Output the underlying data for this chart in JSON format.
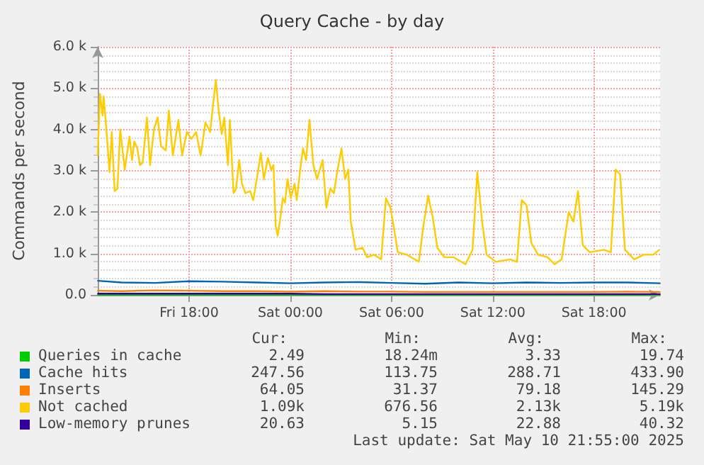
{
  "chart_data": {
    "type": "line",
    "title": "Query Cache - by day",
    "ylabel": "Commands per second",
    "xlim": [
      "2025-05-09T12:35",
      "2025-05-10T21:55"
    ],
    "xticks": [
      {
        "value": "2025-05-09T18:00",
        "label": "Fri 18:00"
      },
      {
        "value": "2025-05-10T00:00",
        "label": "Sat 00:00"
      },
      {
        "value": "2025-05-10T06:00",
        "label": "Sat 06:00"
      },
      {
        "value": "2025-05-10T12:00",
        "label": "Sat 12:00"
      },
      {
        "value": "2025-05-10T18:00",
        "label": "Sat 18:00"
      }
    ],
    "ylim": [
      0,
      6000
    ],
    "yticks": [
      {
        "value": 0,
        "label": "0.0"
      },
      {
        "value": 1000,
        "label": "1.0 k"
      },
      {
        "value": 2000,
        "label": "2.0 k"
      },
      {
        "value": 3000,
        "label": "3.0 k"
      },
      {
        "value": 4000,
        "label": "4.0 k"
      },
      {
        "value": 5000,
        "label": "5.0 k"
      },
      {
        "value": 6000,
        "label": "6.0 k"
      }
    ],
    "grid": true,
    "legend": "bottom",
    "marker": "none",
    "x": [
      "2025-05-09T12:36",
      "2025-05-09T14:00",
      "2025-05-09T16:00",
      "2025-05-09T18:00",
      "2025-05-09T20:00",
      "2025-05-09T22:00",
      "2025-05-10T00:00",
      "2025-05-10T02:00",
      "2025-05-10T04:00",
      "2025-05-10T06:00",
      "2025-05-10T08:00",
      "2025-05-10T10:00",
      "2025-05-10T12:00",
      "2025-05-10T14:00",
      "2025-05-10T16:00",
      "2025-05-10T18:00",
      "2025-05-10T20:00",
      "2025-05-10T21:54"
    ],
    "series": [
      {
        "name": "Queries in cache",
        "color": "#00cc00",
        "values": [
          0,
          0,
          0,
          0,
          0,
          0,
          0,
          0,
          0,
          0,
          0,
          0,
          0,
          0,
          0,
          0,
          0,
          0
        ]
      },
      {
        "name": "Cache hits",
        "color": "#0066b3",
        "values": [
          340,
          300,
          290,
          330,
          320,
          300,
          280,
          300,
          310,
          290,
          270,
          300,
          280,
          300,
          290,
          300,
          300,
          280
        ]
      },
      {
        "name": "Inserts",
        "color": "#ff8000",
        "values": [
          100,
          90,
          110,
          100,
          90,
          90,
          80,
          90,
          80,
          80,
          70,
          70,
          70,
          70,
          70,
          70,
          80,
          70
        ]
      },
      {
        "name": "Not cached",
        "color": "#ffcc00",
        "x": [
          "2025-05-09T12:35",
          "2025-05-09T12:43",
          "2025-05-09T12:52",
          "2025-05-09T12:56",
          "2025-05-09T13:05",
          "2025-05-09T13:17",
          "2025-05-09T13:25",
          "2025-05-09T13:35",
          "2025-05-09T13:45",
          "2025-05-09T13:55",
          "2025-05-09T14:11",
          "2025-05-09T14:28",
          "2025-05-09T14:37",
          "2025-05-09T14:45",
          "2025-05-09T14:56",
          "2025-05-09T15:05",
          "2025-05-09T15:15",
          "2025-05-09T15:30",
          "2025-05-09T15:41",
          "2025-05-09T15:55",
          "2025-05-09T16:08",
          "2025-05-09T16:20",
          "2025-05-09T16:37",
          "2025-05-09T16:48",
          "2025-05-09T17:02",
          "2025-05-09T17:22",
          "2025-05-09T17:35",
          "2025-05-09T17:52",
          "2025-05-09T18:08",
          "2025-05-09T18:25",
          "2025-05-09T18:41",
          "2025-05-09T18:58",
          "2025-05-09T19:15",
          "2025-05-09T19:23",
          "2025-05-09T19:35",
          "2025-05-09T19:45",
          "2025-05-09T19:56",
          "2025-05-09T20:05",
          "2025-05-09T20:18",
          "2025-05-09T20:25",
          "2025-05-09T20:38",
          "2025-05-09T20:47",
          "2025-05-09T20:58",
          "2025-05-09T21:08",
          "2025-05-09T21:20",
          "2025-05-09T21:37",
          "2025-05-09T21:48",
          "2025-05-09T22:02",
          "2025-05-09T22:15",
          "2025-05-09T22:26",
          "2025-05-09T22:40",
          "2025-05-09T22:52",
          "2025-05-09T23:00",
          "2025-05-09T23:08",
          "2025-05-09T23:15",
          "2025-05-09T23:25",
          "2025-05-09T23:33",
          "2025-05-09T23:41",
          "2025-05-09T23:50",
          "2025-05-10T00:02",
          "2025-05-10T00:15",
          "2025-05-10T00:23",
          "2025-05-10T00:35",
          "2025-05-10T00:45",
          "2025-05-10T00:56",
          "2025-05-10T01:08",
          "2025-05-10T01:22",
          "2025-05-10T01:35",
          "2025-05-10T01:55",
          "2025-05-10T02:08",
          "2025-05-10T02:22",
          "2025-05-10T02:35",
          "2025-05-10T02:45",
          "2025-05-10T03:02",
          "2025-05-10T03:15",
          "2025-05-10T03:26",
          "2025-05-10T03:35",
          "2025-05-10T03:52",
          "2025-05-10T04:17",
          "2025-05-10T04:33",
          "2025-05-10T04:58",
          "2025-05-10T05:23",
          "2025-05-10T05:40",
          "2025-05-10T05:56",
          "2025-05-10T06:13",
          "2025-05-10T06:22",
          "2025-05-10T06:55",
          "2025-05-10T07:37",
          "2025-05-10T07:53",
          "2025-05-10T08:10",
          "2025-05-10T08:26",
          "2025-05-10T08:43",
          "2025-05-10T09:08",
          "2025-05-10T09:41",
          "2025-05-10T10:23",
          "2025-05-10T10:48",
          "2025-05-10T11:05",
          "2025-05-10T11:22",
          "2025-05-10T11:38",
          "2025-05-10T12:11",
          "2025-05-10T13:02",
          "2025-05-10T13:26",
          "2025-05-10T13:43",
          "2025-05-10T14:00",
          "2025-05-10T14:17",
          "2025-05-10T14:41",
          "2025-05-10T15:15",
          "2025-05-10T15:40",
          "2025-05-10T16:05",
          "2025-05-10T16:30",
          "2025-05-10T16:47",
          "2025-05-10T17:03",
          "2025-05-10T17:20",
          "2025-05-10T17:45",
          "2025-05-10T18:35",
          "2025-05-10T19:00",
          "2025-05-10T19:17",
          "2025-05-10T19:33",
          "2025-05-10T19:50",
          "2025-05-10T20:23",
          "2025-05-10T20:56",
          "2025-05-10T21:30",
          "2025-05-10T21:52"
        ],
        "values": [
          3370,
          4860,
          4340,
          4800,
          4060,
          2970,
          3940,
          2510,
          2570,
          4000,
          3030,
          3830,
          3260,
          3710,
          3540,
          3140,
          3200,
          4290,
          3140,
          4000,
          4290,
          3600,
          3490,
          4460,
          3370,
          4230,
          3370,
          3940,
          3770,
          3940,
          3370,
          4170,
          3940,
          4460,
          5200,
          4460,
          3890,
          4290,
          3140,
          4230,
          2460,
          2570,
          3260,
          2690,
          2460,
          2510,
          2290,
          2860,
          3430,
          2800,
          3310,
          3030,
          3140,
          1660,
          1430,
          1890,
          2340,
          2230,
          2800,
          2340,
          2690,
          2290,
          3030,
          3540,
          3260,
          4230,
          3140,
          2800,
          3260,
          2110,
          2570,
          2460,
          2910,
          3540,
          2800,
          3030,
          1770,
          1090,
          1140,
          910,
          970,
          860,
          2340,
          2110,
          1430,
          1030,
          970,
          800,
          1660,
          2400,
          1890,
          1140,
          910,
          910,
          740,
          1090,
          2970,
          1770,
          970,
          800,
          860,
          800,
          2290,
          2170,
          1260,
          970,
          910,
          740,
          860,
          2000,
          1770,
          2510,
          1200,
          1030,
          1090,
          1030,
          3030,
          2910,
          1090,
          860,
          970,
          970,
          1090
        ]
      },
      {
        "name": "Low-memory prunes",
        "color": "#330099",
        "values": [
          30,
          30,
          30,
          30,
          30,
          30,
          30,
          20,
          20,
          20,
          20,
          20,
          20,
          20,
          20,
          20,
          20,
          20
        ]
      }
    ],
    "annotations": [
      "Cur:",
      "Min:",
      "Avg:",
      "Max:",
      "2.49",
      "18.24m",
      "3.33",
      "19.74",
      "247.56",
      "113.75",
      "288.71",
      "433.90",
      "64.05",
      "31.37",
      "79.18",
      "145.29",
      "1.09k",
      "676.56",
      "2.13k",
      "5.19k",
      "20.63",
      "5.15",
      "22.88",
      "40.32",
      "Last update: Sat May 10 21:55:00 2025"
    ]
  }
}
